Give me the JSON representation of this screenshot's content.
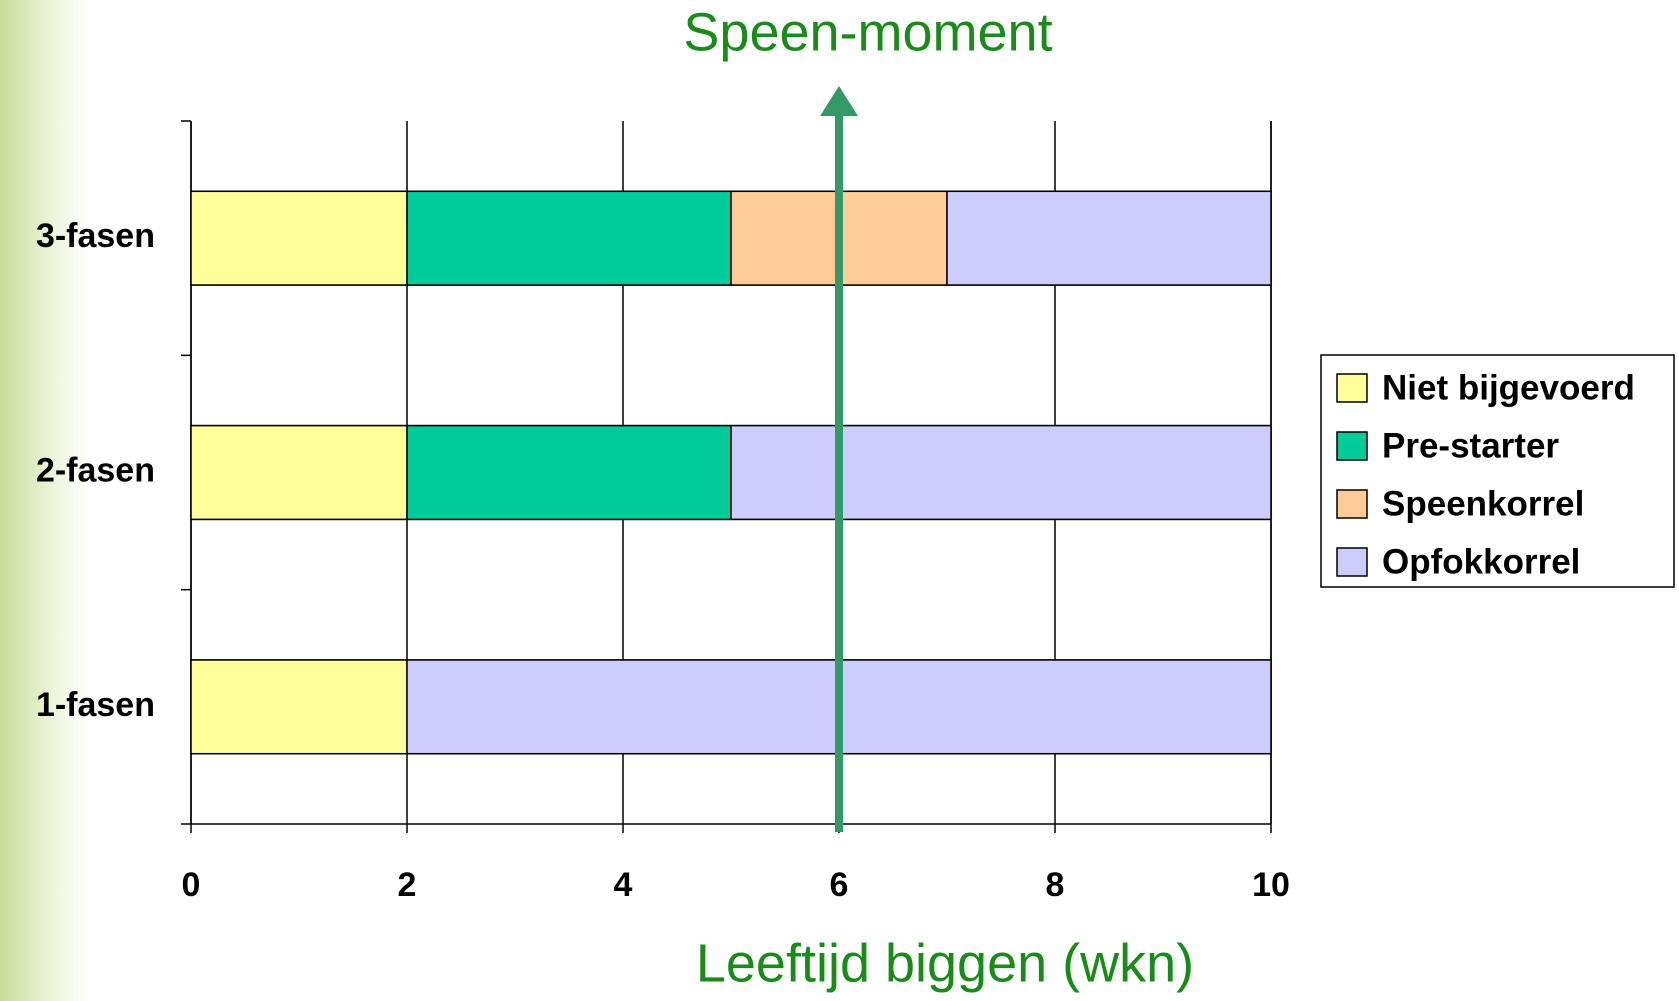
{
  "chart_data": {
    "type": "stacked-barh",
    "annotation": {
      "text": "Speen-moment",
      "x": 6,
      "color": "#339966"
    },
    "xlabel": "Leeftijd biggen (wkn)",
    "categories": [
      "3-fasen",
      "2-fasen",
      "1-fasen"
    ],
    "series": [
      {
        "name": "Niet bijgevoerd",
        "color": "#ffff99",
        "values": [
          2,
          2,
          2
        ]
      },
      {
        "name": "Pre-starter",
        "color": "#00cc99",
        "values": [
          3,
          3,
          0
        ]
      },
      {
        "name": "Speenkorrel",
        "color": "#ffcc99",
        "values": [
          2,
          0,
          0
        ]
      },
      {
        "name": "Opfokkorrel",
        "color": "#ccccff",
        "values": [
          3,
          5,
          8
        ]
      }
    ],
    "xlim": [
      0,
      10
    ],
    "xticks": [
      0,
      2,
      4,
      6,
      8,
      10
    ],
    "grid": true,
    "legend": "right"
  }
}
